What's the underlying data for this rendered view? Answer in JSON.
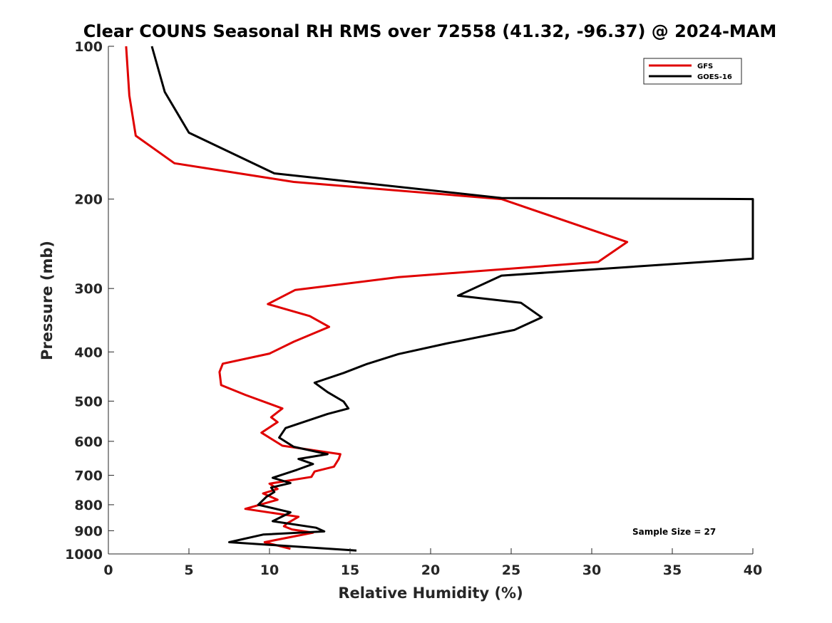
{
  "chart_data": {
    "type": "line",
    "title": "Clear COUNS Seasonal RH RMS over 72558 (41.32, -96.37) @ 2024-MAM",
    "xlabel": "Relative Humidity (%)",
    "ylabel": "Pressure (mb)",
    "xlim": [
      0,
      40
    ],
    "ylim": [
      100,
      1000
    ],
    "yscale": "log",
    "yreversed": true,
    "xticks": [
      0,
      5,
      10,
      15,
      20,
      25,
      30,
      35,
      40
    ],
    "yticks": [
      100,
      200,
      300,
      400,
      500,
      600,
      700,
      800,
      900,
      1000
    ],
    "legend_position": "top-right",
    "annotation": "Sample Size = 27",
    "series": [
      {
        "name": "GFS",
        "color": "#e00000",
        "x": [
          1.1,
          1.3,
          1.7,
          4.1,
          11.5,
          24.4,
          32.2,
          30.4,
          18.0,
          11.6,
          9.9,
          12.5,
          13.7,
          11.5,
          10.0,
          7.1,
          6.9,
          7.0,
          8.5,
          10.8,
          10.1,
          10.5,
          9.5,
          10.8,
          14.4,
          14.3,
          14.0,
          12.8,
          12.6,
          10.0,
          10.5,
          9.6,
          10.5,
          8.5,
          11.8,
          11.1,
          10.9,
          11.4,
          12.7,
          9.7,
          11.3
        ],
        "y": [
          100,
          125,
          150,
          170,
          185,
          200,
          243,
          266,
          285,
          302,
          322,
          340,
          357,
          382,
          403,
          422,
          438,
          465,
          486,
          517,
          538,
          550,
          577,
          612,
          636,
          650,
          673,
          688,
          705,
          727,
          745,
          760,
          782,
          815,
          845,
          870,
          882,
          895,
          908,
          948,
          977
        ]
      },
      {
        "name": "GOES-16",
        "color": "#000000",
        "x": [
          2.7,
          3.5,
          5.0,
          10.3,
          24.4,
          40.0,
          40.0,
          24.4,
          21.7,
          25.6,
          26.9,
          25.2,
          21.0,
          18.0,
          16.0,
          14.6,
          12.8,
          13.6,
          14.6,
          14.9,
          13.6,
          11.0,
          10.6,
          11.5,
          13.6,
          11.8,
          12.7,
          11.7,
          10.2,
          11.3,
          10.1,
          10.3,
          9.8,
          9.3,
          11.3,
          10.2,
          12.9,
          13.4,
          9.6,
          7.5,
          15.4
        ],
        "y": [
          100,
          123,
          148,
          178,
          199,
          200,
          262,
          283,
          310,
          320,
          342,
          362,
          385,
          404,
          423,
          440,
          460,
          480,
          501,
          517,
          530,
          565,
          590,
          615,
          636,
          650,
          665,
          683,
          708,
          725,
          740,
          755,
          772,
          800,
          828,
          862,
          888,
          903,
          916,
          948,
          985
        ]
      }
    ]
  }
}
